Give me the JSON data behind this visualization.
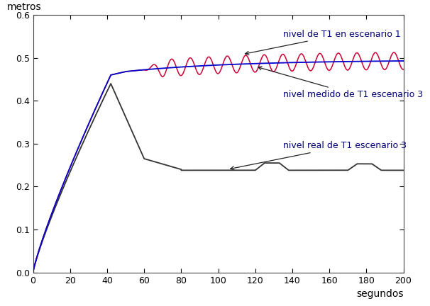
{
  "xlabel": "segundos",
  "ylabel": "metros",
  "xlim": [
    0,
    200
  ],
  "ylim": [
    0,
    0.6
  ],
  "xticks": [
    0,
    20,
    40,
    60,
    80,
    100,
    120,
    140,
    160,
    180,
    200
  ],
  "yticks": [
    0,
    0.1,
    0.2,
    0.3,
    0.4,
    0.5,
    0.6
  ],
  "label_escenario1": "nivel de T1 en escenario 1",
  "label_medido": "nivel medido de T1 escenario 3",
  "label_real": "nivel real de T1 escenario 3",
  "color_escenario1": "#0000cc",
  "color_medido": "#cc0033",
  "color_real": "#333333",
  "annotation_arrow_color": "#222222",
  "bg_color": "#ffffff",
  "xlabel_fontsize": 10,
  "ylabel_fontsize": 10,
  "tick_fontsize": 9,
  "annotation_fontsize": 9
}
